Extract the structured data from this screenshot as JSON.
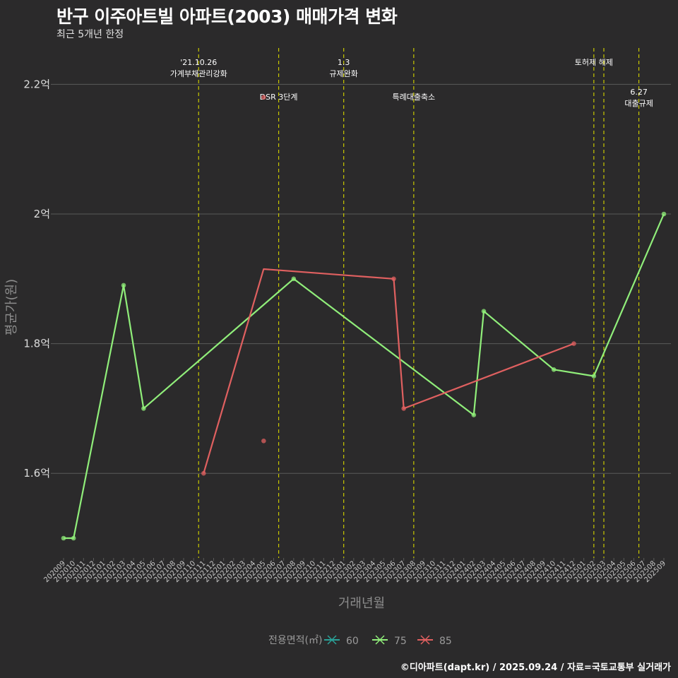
{
  "title": "반구 이주아트빌 아파트(2003) 매매가격 변화",
  "subtitle": "최근 5개년 한정",
  "footer": "©디아파트(dapt.kr) / 2025.09.24 / 자료=국토교통부 실거래가",
  "colors": {
    "background": "#2b2a2b",
    "grid": "#5a5a5a",
    "event_line": "#c8c800",
    "s60": "#2aa198",
    "s75": "#90ee7a",
    "s85": "#e06060"
  },
  "chart_data": {
    "type": "line",
    "title": "반구 이주아트빌 아파트(2003) 매매가격 변화",
    "xlabel": "거래년월",
    "ylabel": "평균가(원)",
    "ylim": [
      1.47,
      2.28
    ],
    "yticks": [
      {
        "value": 1.6,
        "label": "1.6억"
      },
      {
        "value": 1.8,
        "label": "1.8억"
      },
      {
        "value": 2.0,
        "label": "2억"
      },
      {
        "value": 2.2,
        "label": "2.2억"
      }
    ],
    "categories": [
      "202009",
      "202010",
      "202011",
      "202012",
      "202101",
      "202102",
      "202103",
      "202104",
      "202105",
      "202106",
      "202107",
      "202108",
      "202109",
      "202110",
      "202111",
      "202112",
      "202201",
      "202202",
      "202203",
      "202204",
      "202205",
      "202206",
      "202207",
      "202208",
      "202209",
      "202210",
      "202211",
      "202212",
      "202301",
      "202302",
      "202303",
      "202304",
      "202305",
      "202306",
      "202307",
      "202308",
      "202309",
      "202310",
      "202311",
      "202312",
      "202401",
      "202402",
      "202403",
      "202404",
      "202405",
      "202406",
      "202407",
      "202408",
      "202409",
      "202410",
      "202411",
      "202412",
      "202501",
      "202502",
      "202503",
      "202504",
      "202505",
      "202506",
      "202507",
      "202508",
      "202509"
    ],
    "legend": {
      "title": "전용면적(㎡)",
      "position": "bottom"
    },
    "series": [
      {
        "name": "60",
        "color": "#2aa198",
        "line": [],
        "points": []
      },
      {
        "name": "75",
        "color": "#90ee7a",
        "line": [
          [
            "202009",
            1.5
          ],
          [
            "202010",
            1.5
          ],
          [
            "202103",
            1.89
          ],
          [
            "202105",
            1.7
          ],
          [
            "202208",
            1.9
          ],
          [
            "202402",
            1.69
          ],
          [
            "202403",
            1.85
          ],
          [
            "202410",
            1.76
          ],
          [
            "202502",
            1.75
          ],
          [
            "202509",
            2.0
          ]
        ],
        "points": [
          [
            "202009",
            1.5
          ],
          [
            "202010",
            1.5
          ],
          [
            "202103",
            1.89
          ],
          [
            "202105",
            1.7
          ],
          [
            "202208",
            1.9
          ],
          [
            "202402",
            1.69
          ],
          [
            "202403",
            1.85
          ],
          [
            "202410",
            1.76
          ],
          [
            "202502",
            1.75
          ],
          [
            "202509",
            2.0
          ]
        ]
      },
      {
        "name": "85",
        "color": "#e06060",
        "line": [
          [
            "202111",
            1.6
          ],
          [
            "202205",
            1.915
          ],
          [
            "202306",
            1.9
          ],
          [
            "202307",
            1.7
          ],
          [
            "202412",
            1.8
          ]
        ],
        "points": [
          [
            "202111",
            1.6
          ],
          [
            "202205",
            2.18
          ],
          [
            "202205",
            1.65
          ],
          [
            "202306",
            1.9
          ],
          [
            "202307",
            1.7
          ],
          [
            "202412",
            1.8
          ]
        ]
      }
    ],
    "events": [
      {
        "x": "202111",
        "offset": -0.5,
        "lines": [
          "'21.10.26",
          "가계부채관리강화"
        ],
        "row": 0
      },
      {
        "x": "202206",
        "offset": 0.5,
        "lines": [
          "DSR 3단계"
        ],
        "row": 1
      },
      {
        "x": "202301",
        "offset": 0,
        "lines": [
          "1.3",
          "규제완화"
        ],
        "row": 0
      },
      {
        "x": "202308",
        "offset": 0,
        "lines": [
          "특례대출축소"
        ],
        "row": 1
      },
      {
        "x": "202502",
        "offset": 0,
        "lines": [
          "토허제 해제"
        ],
        "row": 0
      },
      {
        "x": "202503",
        "offset": 0,
        "lines": [],
        "row": 0
      },
      {
        "x": "202506",
        "offset": 0.5,
        "lines": [
          "6.27",
          "대출규제"
        ],
        "row": 2
      }
    ]
  }
}
